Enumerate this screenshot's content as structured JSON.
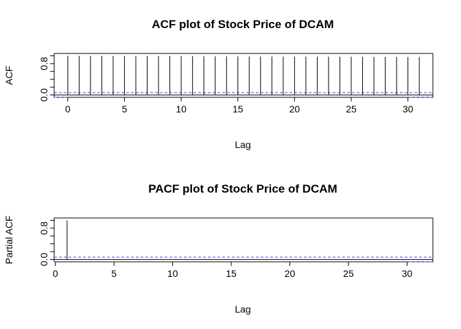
{
  "chart_data": [
    {
      "type": "bar",
      "title": "ACF plot of Stock Price of DCAM",
      "xlabel": "Lag",
      "ylabel": "ACF",
      "xlim": [
        -1.2,
        32.2
      ],
      "ylim": [
        -0.06,
        1.06
      ],
      "x_ticks": [
        0,
        5,
        10,
        15,
        20,
        25,
        30
      ],
      "x_tick_labels": [
        "0",
        "5",
        "10",
        "15",
        "20",
        "25",
        "30"
      ],
      "y_ticks": [
        0.0,
        0.2,
        0.4,
        0.6,
        0.8,
        1.0
      ],
      "y_tick_labels": [
        "0.0",
        "",
        "",
        "",
        "0.8",
        ""
      ],
      "zero_line": 0,
      "confidence_band": 0.06,
      "confidence_color": "#4040ff",
      "grid": false,
      "x": [
        0,
        1,
        2,
        3,
        4,
        5,
        6,
        7,
        8,
        9,
        10,
        11,
        12,
        13,
        14,
        15,
        16,
        17,
        18,
        19,
        20,
        21,
        22,
        23,
        24,
        25,
        26,
        27,
        28,
        29,
        30,
        31
      ],
      "values": [
        1.0,
        0.999,
        0.998,
        0.997,
        0.996,
        0.995,
        0.994,
        0.993,
        0.992,
        0.991,
        0.99,
        0.989,
        0.988,
        0.987,
        0.986,
        0.985,
        0.984,
        0.983,
        0.982,
        0.981,
        0.98,
        0.979,
        0.978,
        0.977,
        0.976,
        0.975,
        0.974,
        0.973,
        0.972,
        0.971,
        0.97,
        0.969
      ]
    },
    {
      "type": "bar",
      "title": "PACF plot of Stock Price of DCAM",
      "xlabel": "Lag",
      "ylabel": "Partial ACF",
      "xlim": [
        -0.1,
        32.2
      ],
      "ylim": [
        -0.06,
        1.06
      ],
      "x_ticks": [
        0,
        5,
        10,
        15,
        20,
        25,
        30
      ],
      "x_tick_labels": [
        "0",
        "5",
        "10",
        "15",
        "20",
        "25",
        "30"
      ],
      "y_ticks": [
        0.0,
        0.2,
        0.4,
        0.6,
        0.8,
        1.0
      ],
      "y_tick_labels": [
        "0.0",
        "",
        "",
        "",
        "0.8",
        ""
      ],
      "zero_line": 0,
      "confidence_band": 0.06,
      "confidence_color": "#4040ff",
      "grid": false,
      "x": [
        1,
        2,
        3,
        4,
        5,
        6,
        7,
        8,
        9,
        10,
        11,
        12,
        13,
        14,
        15,
        16,
        17,
        18,
        19,
        20,
        21,
        22,
        23,
        24,
        25,
        26,
        27,
        28,
        29,
        30,
        31
      ],
      "values": [
        0.999,
        0.0,
        -0.01,
        0.0,
        0.01,
        -0.005,
        0.0,
        -0.01,
        0.005,
        0.0,
        0.0,
        -0.01,
        0.01,
        0.0,
        -0.005,
        0.0,
        0.0,
        -0.01,
        0.0,
        0.005,
        0.0,
        -0.01,
        0.0,
        0.0,
        0.005,
        0.0,
        -0.01,
        0.0,
        0.0,
        0.01,
        -0.005
      ]
    }
  ]
}
